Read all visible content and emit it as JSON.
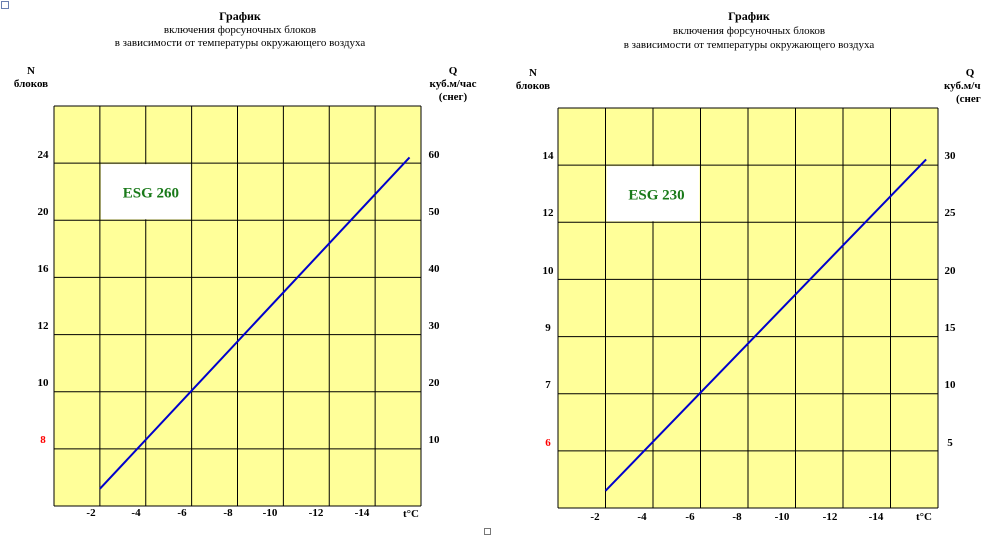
{
  "colors": {
    "plot_bg": "#ffff99",
    "grid": "#000000",
    "line": "#0000cc",
    "model_label": "#1a7a1a",
    "highlight_tick": "#ff0000",
    "background": "#ffffff"
  },
  "chart_data": [
    {
      "type": "line",
      "title": "График",
      "subtitle_1": "включения форсуночных блоков",
      "subtitle_2": "в зависимости от температуры  окружающего  воздуха",
      "left_axis_label_1": "N",
      "left_axis_label_2": "блоков",
      "right_axis_label_1": "Q",
      "right_axis_label_2": "куб.м/час",
      "right_axis_label_3": "(снег)",
      "x_axis_label": "t°C",
      "model_label": "ESG 260",
      "x_ticks": [
        "-2",
        "-4",
        "-6",
        "-8",
        "-10",
        "-12",
        "-14"
      ],
      "left_ticks": [
        "8",
        "10",
        "12",
        "16",
        "20",
        "24"
      ],
      "left_tick_highlight": "8",
      "right_ticks": [
        "10",
        "20",
        "30",
        "40",
        "50",
        "60"
      ],
      "series": [
        {
          "x": [
            -2,
            -15.5
          ],
          "y": [
            3,
            61
          ]
        }
      ],
      "grid": true
    },
    {
      "type": "line",
      "title": "График",
      "subtitle_1": "включения форсуночных блоков",
      "subtitle_2": "в зависимости от температуры  окружающего  воздуха",
      "left_axis_label_1": "N",
      "left_axis_label_2": "блоков",
      "right_axis_label_1": "Q",
      "right_axis_label_2": "куб.м/ч",
      "right_axis_label_3": "(снег",
      "x_axis_label": "t°C",
      "model_label": "ESG 230",
      "x_ticks": [
        "-2",
        "-4",
        "-6",
        "-8",
        "-10",
        "-12",
        "-14"
      ],
      "left_ticks": [
        "6",
        "7",
        "9",
        "10",
        "12",
        "14"
      ],
      "left_tick_highlight": "6",
      "right_ticks": [
        "5",
        "10",
        "15",
        "20",
        "25",
        "30"
      ],
      "series": [
        {
          "x": [
            -2,
            -15.5
          ],
          "y": [
            1.5,
            30.5
          ]
        }
      ],
      "grid": true
    }
  ]
}
